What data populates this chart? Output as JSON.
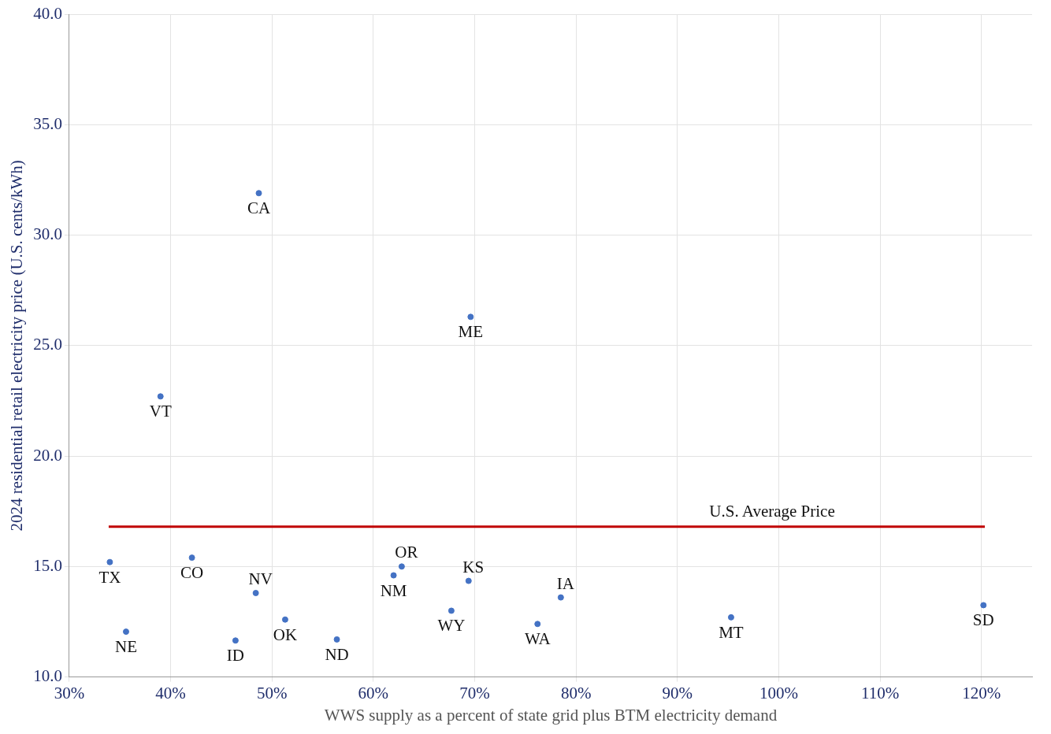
{
  "chart_data": {
    "type": "scatter",
    "xlabel": "WWS supply as a percent of state grid plus BTM electricity demand",
    "ylabel": "2024 residential retail electricity price (U.S. cents/kWh)",
    "x": [
      34.0,
      35.6,
      39.0,
      42.1,
      48.7,
      48.4,
      46.4,
      51.3,
      56.4,
      62.0,
      62.8,
      67.7,
      69.4,
      69.6,
      76.2,
      78.5,
      95.3,
      120.2
    ],
    "series": [
      {
        "color": "#4472c4",
        "values": [
          15.2,
          12.05,
          22.7,
          15.4,
          31.9,
          13.8,
          11.65,
          12.6,
          11.7,
          14.6,
          15.0,
          13.0,
          14.35,
          26.3,
          12.4,
          13.6,
          12.7,
          13.25
        ]
      }
    ],
    "annotations": [
      {
        "text": "TX",
        "x": 34.0,
        "y": 15.2
      },
      {
        "text": "NE",
        "x": 35.6,
        "y": 12.05
      },
      {
        "text": "VT",
        "x": 39.0,
        "y": 22.7
      },
      {
        "text": "CO",
        "x": 42.1,
        "y": 15.4
      },
      {
        "text": "CA",
        "x": 48.7,
        "y": 31.9
      },
      {
        "text": "NV",
        "x": 48.4,
        "y": 13.8
      },
      {
        "text": "ID",
        "x": 46.4,
        "y": 11.65
      },
      {
        "text": "OK",
        "x": 51.3,
        "y": 12.6
      },
      {
        "text": "ND",
        "x": 56.4,
        "y": 11.7
      },
      {
        "text": "NM",
        "x": 62.0,
        "y": 14.6
      },
      {
        "text": "OR",
        "x": 62.8,
        "y": 15.0
      },
      {
        "text": "WY",
        "x": 67.7,
        "y": 13.0
      },
      {
        "text": "KS",
        "x": 69.4,
        "y": 14.35
      },
      {
        "text": "ME",
        "x": 69.6,
        "y": 26.3
      },
      {
        "text": "WA",
        "x": 76.2,
        "y": 12.4
      },
      {
        "text": "IA",
        "x": 78.5,
        "y": 13.6
      },
      {
        "text": "MT",
        "x": 95.3,
        "y": 12.7
      },
      {
        "text": "SD",
        "x": 120.2,
        "y": 13.25
      }
    ],
    "ref_lines": [
      {
        "axis": "y",
        "value": 16.8,
        "label": "U.S. Average Price",
        "color": "#c00000"
      }
    ],
    "xlim": [
      30,
      125
    ],
    "xticks": [
      {
        "value": 30,
        "label": "30%"
      },
      {
        "value": 40,
        "label": "40%"
      },
      {
        "value": 50,
        "label": "50%"
      },
      {
        "value": 60,
        "label": "60%"
      },
      {
        "value": 70,
        "label": "70%"
      },
      {
        "value": 80,
        "label": "80%"
      },
      {
        "value": 90,
        "label": "90%"
      },
      {
        "value": 100,
        "label": "100%"
      },
      {
        "value": 110,
        "label": "110%"
      },
      {
        "value": 120,
        "label": "120%"
      }
    ],
    "ylim": [
      10,
      40
    ],
    "yticks": [
      {
        "value": 10,
        "label": "10.0"
      },
      {
        "value": 15,
        "label": "15.0"
      },
      {
        "value": 20,
        "label": "20.0"
      },
      {
        "value": 25,
        "label": "25.0"
      },
      {
        "value": 30,
        "label": "30.0"
      },
      {
        "value": 35,
        "label": "35.0"
      },
      {
        "value": 40,
        "label": "40.0"
      }
    ],
    "grid": true,
    "legend": false,
    "marker": "circle"
  }
}
